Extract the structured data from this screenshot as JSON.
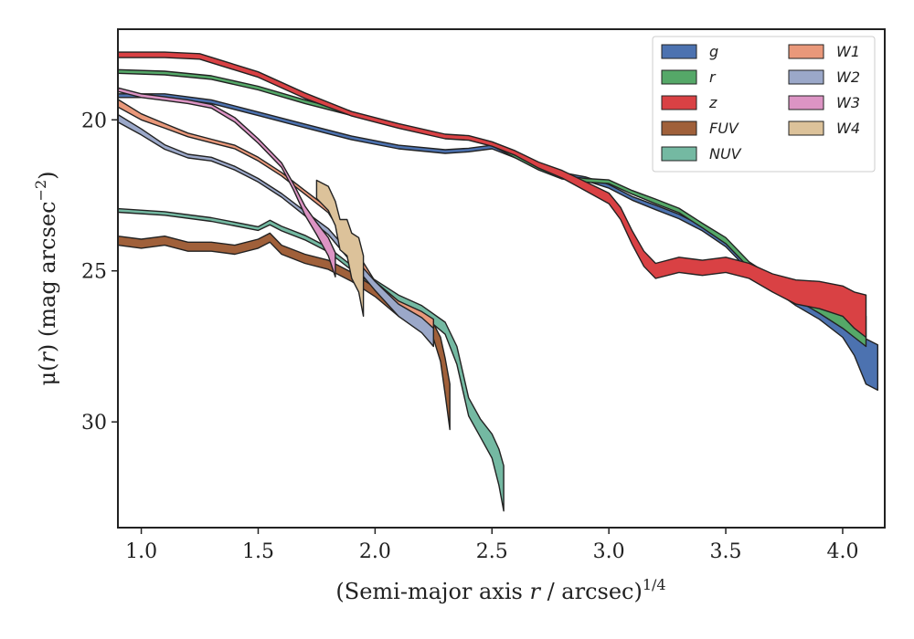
{
  "chart_data": {
    "type": "area",
    "title": "",
    "xlabel_main": "(Semi-major axis ",
    "xlabel_var": "r",
    "xlabel_tail": " / arcsec)",
    "xlabel_exp": "1/4",
    "ylabel_main": "μ(",
    "ylabel_var": "r",
    "ylabel_tail": ") (mag arcsec",
    "ylabel_exp": "−2",
    "ylabel_close": ")",
    "xlim": [
      0.9,
      4.18
    ],
    "ylim": [
      33.5,
      17.0
    ],
    "y_inverted": true,
    "xticks": [
      1.0,
      1.5,
      2.0,
      2.5,
      3.0,
      3.5,
      4.0
    ],
    "xtick_labels": [
      "1.0",
      "1.5",
      "2.0",
      "2.5",
      "3.0",
      "3.5",
      "4.0"
    ],
    "yticks": [
      20,
      25,
      30
    ],
    "ytick_labels": [
      "20",
      "25",
      "30"
    ],
    "legend": {
      "placement": "top-right",
      "columns": 2
    },
    "series": [
      {
        "name": "g",
        "color": "#4c72b0",
        "x": [
          0.9,
          1.1,
          1.3,
          1.5,
          1.7,
          1.9,
          2.1,
          2.3,
          2.4,
          2.5,
          2.6,
          2.7,
          2.8,
          2.9,
          3.0,
          3.1,
          3.2,
          3.3,
          3.4,
          3.5,
          3.6,
          3.7,
          3.8,
          3.9,
          4.0,
          4.05,
          4.1,
          4.15
        ],
        "y": [
          19.2,
          19.2,
          19.4,
          19.8,
          20.2,
          20.6,
          20.9,
          21.05,
          21.0,
          20.9,
          21.2,
          21.5,
          21.8,
          21.95,
          22.2,
          22.6,
          22.9,
          23.2,
          23.6,
          24.1,
          24.9,
          25.5,
          26.0,
          26.4,
          26.9,
          27.3,
          28.0,
          28.2
        ],
        "width": [
          0.12,
          0.12,
          0.12,
          0.12,
          0.12,
          0.12,
          0.12,
          0.12,
          0.12,
          0.12,
          0.12,
          0.12,
          0.12,
          0.12,
          0.12,
          0.12,
          0.15,
          0.15,
          0.15,
          0.2,
          0.2,
          0.2,
          0.3,
          0.4,
          0.6,
          1.0,
          1.5,
          1.5
        ]
      },
      {
        "name": "r",
        "color": "#55a868",
        "x": [
          0.9,
          1.1,
          1.3,
          1.5,
          1.7,
          1.9,
          2.1,
          2.3,
          2.4,
          2.5,
          2.6,
          2.7,
          2.8,
          2.9,
          3.0,
          3.1,
          3.2,
          3.3,
          3.4,
          3.5,
          3.6,
          3.7,
          3.8,
          3.9,
          4.0,
          4.05,
          4.1
        ],
        "y": [
          18.4,
          18.45,
          18.6,
          18.95,
          19.4,
          19.8,
          20.2,
          20.55,
          20.6,
          20.8,
          21.2,
          21.6,
          21.9,
          22.0,
          22.05,
          22.4,
          22.7,
          23.0,
          23.5,
          24.0,
          24.8,
          25.3,
          25.8,
          26.2,
          26.6,
          26.8,
          27.0
        ],
        "width": [
          0.12,
          0.12,
          0.12,
          0.12,
          0.12,
          0.12,
          0.12,
          0.12,
          0.12,
          0.12,
          0.12,
          0.12,
          0.12,
          0.12,
          0.12,
          0.12,
          0.15,
          0.15,
          0.15,
          0.2,
          0.2,
          0.2,
          0.3,
          0.4,
          0.6,
          0.8,
          1.0
        ]
      },
      {
        "name": "z",
        "color": "#d94144",
        "x": [
          0.9,
          1.1,
          1.25,
          1.5,
          1.7,
          1.9,
          2.1,
          2.3,
          2.4,
          2.5,
          2.6,
          2.7,
          2.8,
          2.9,
          3.0,
          3.05,
          3.1,
          3.15,
          3.2,
          3.3,
          3.4,
          3.5,
          3.6,
          3.7,
          3.8,
          3.9,
          4.0,
          4.05,
          4.1
        ],
        "y": [
          17.85,
          17.85,
          17.9,
          18.5,
          19.2,
          19.8,
          20.2,
          20.55,
          20.6,
          20.8,
          21.1,
          21.5,
          21.8,
          22.2,
          22.6,
          23.1,
          23.9,
          24.6,
          25.0,
          24.8,
          24.9,
          24.8,
          25.0,
          25.4,
          25.7,
          25.8,
          26.0,
          26.3,
          26.5
        ],
        "width": [
          0.18,
          0.18,
          0.18,
          0.18,
          0.18,
          0.15,
          0.15,
          0.15,
          0.15,
          0.15,
          0.15,
          0.2,
          0.25,
          0.3,
          0.35,
          0.4,
          0.45,
          0.5,
          0.5,
          0.5,
          0.5,
          0.5,
          0.5,
          0.6,
          0.8,
          0.9,
          1.0,
          1.2,
          1.4
        ]
      },
      {
        "name": "FUV",
        "color": "#a0603a",
        "x": [
          0.9,
          1.0,
          1.1,
          1.2,
          1.3,
          1.4,
          1.5,
          1.55,
          1.6,
          1.7,
          1.8,
          1.9,
          2.0,
          2.1,
          2.2,
          2.25,
          2.28,
          2.3,
          2.32
        ],
        "y": [
          24.0,
          24.1,
          24.0,
          24.2,
          24.2,
          24.3,
          24.1,
          23.9,
          24.3,
          24.6,
          24.8,
          25.2,
          25.7,
          26.3,
          26.8,
          27.0,
          27.6,
          28.5,
          29.5
        ],
        "width": [
          0.3,
          0.3,
          0.3,
          0.3,
          0.3,
          0.3,
          0.3,
          0.3,
          0.3,
          0.3,
          0.3,
          0.3,
          0.3,
          0.4,
          0.4,
          0.5,
          0.8,
          1.2,
          1.5
        ]
      },
      {
        "name": "NUV",
        "color": "#74b9a2",
        "x": [
          0.9,
          1.1,
          1.3,
          1.5,
          1.55,
          1.6,
          1.7,
          1.8,
          1.9,
          2.0,
          2.1,
          2.2,
          2.3,
          2.35,
          2.4,
          2.45,
          2.5,
          2.53,
          2.55
        ],
        "y": [
          23.0,
          23.1,
          23.3,
          23.6,
          23.4,
          23.6,
          23.9,
          24.3,
          24.9,
          25.4,
          25.9,
          26.3,
          26.9,
          27.8,
          29.5,
          30.2,
          30.8,
          31.5,
          32.2
        ],
        "width": [
          0.12,
          0.12,
          0.12,
          0.12,
          0.15,
          0.15,
          0.15,
          0.15,
          0.15,
          0.2,
          0.2,
          0.3,
          0.4,
          0.6,
          0.6,
          0.6,
          0.8,
          1.2,
          1.5
        ]
      },
      {
        "name": "W1",
        "color": "#e9987a",
        "x": [
          0.9,
          1.0,
          1.1,
          1.2,
          1.3,
          1.4,
          1.5,
          1.6,
          1.7,
          1.8,
          1.9,
          2.0,
          2.1,
          2.2,
          2.25
        ],
        "y": [
          19.45,
          19.9,
          20.2,
          20.5,
          20.7,
          20.9,
          21.3,
          21.8,
          22.4,
          23.0,
          24.2,
          25.5,
          26.2,
          26.6,
          26.9
        ],
        "width": [
          0.25,
          0.2,
          0.15,
          0.12,
          0.12,
          0.12,
          0.12,
          0.12,
          0.12,
          0.15,
          0.2,
          0.3,
          0.4,
          0.5,
          0.6
        ]
      },
      {
        "name": "W2",
        "color": "#9ba8c9",
        "x": [
          0.9,
          1.0,
          1.1,
          1.2,
          1.3,
          1.4,
          1.5,
          1.6,
          1.7,
          1.8,
          1.9,
          2.0,
          2.1,
          2.2,
          2.25
        ],
        "y": [
          19.95,
          20.4,
          20.9,
          21.2,
          21.3,
          21.6,
          22.0,
          22.5,
          23.1,
          23.7,
          24.6,
          25.5,
          26.3,
          26.8,
          27.2
        ],
        "width": [
          0.25,
          0.2,
          0.15,
          0.12,
          0.12,
          0.12,
          0.12,
          0.12,
          0.15,
          0.2,
          0.25,
          0.3,
          0.4,
          0.5,
          0.6
        ]
      },
      {
        "name": "W3",
        "color": "#dc94c4",
        "x": [
          0.9,
          1.0,
          1.1,
          1.2,
          1.3,
          1.4,
          1.5,
          1.6,
          1.65,
          1.7,
          1.75,
          1.8,
          1.83
        ],
        "y": [
          19.0,
          19.2,
          19.3,
          19.4,
          19.55,
          20.0,
          20.7,
          21.5,
          22.2,
          23.0,
          23.6,
          24.2,
          24.8
        ],
        "width": [
          0.12,
          0.12,
          0.12,
          0.12,
          0.12,
          0.15,
          0.15,
          0.15,
          0.2,
          0.3,
          0.4,
          0.6,
          0.8
        ]
      },
      {
        "name": "W4",
        "color": "#dcc29a",
        "x": [
          1.75,
          1.8,
          1.83,
          1.85,
          1.88,
          1.9,
          1.93,
          1.95
        ],
        "y": [
          22.3,
          22.6,
          23.1,
          23.8,
          23.9,
          24.5,
          24.8,
          25.5
        ],
        "width": [
          0.6,
          0.8,
          0.8,
          1.0,
          1.2,
          1.5,
          1.8,
          2.0
        ]
      }
    ]
  }
}
